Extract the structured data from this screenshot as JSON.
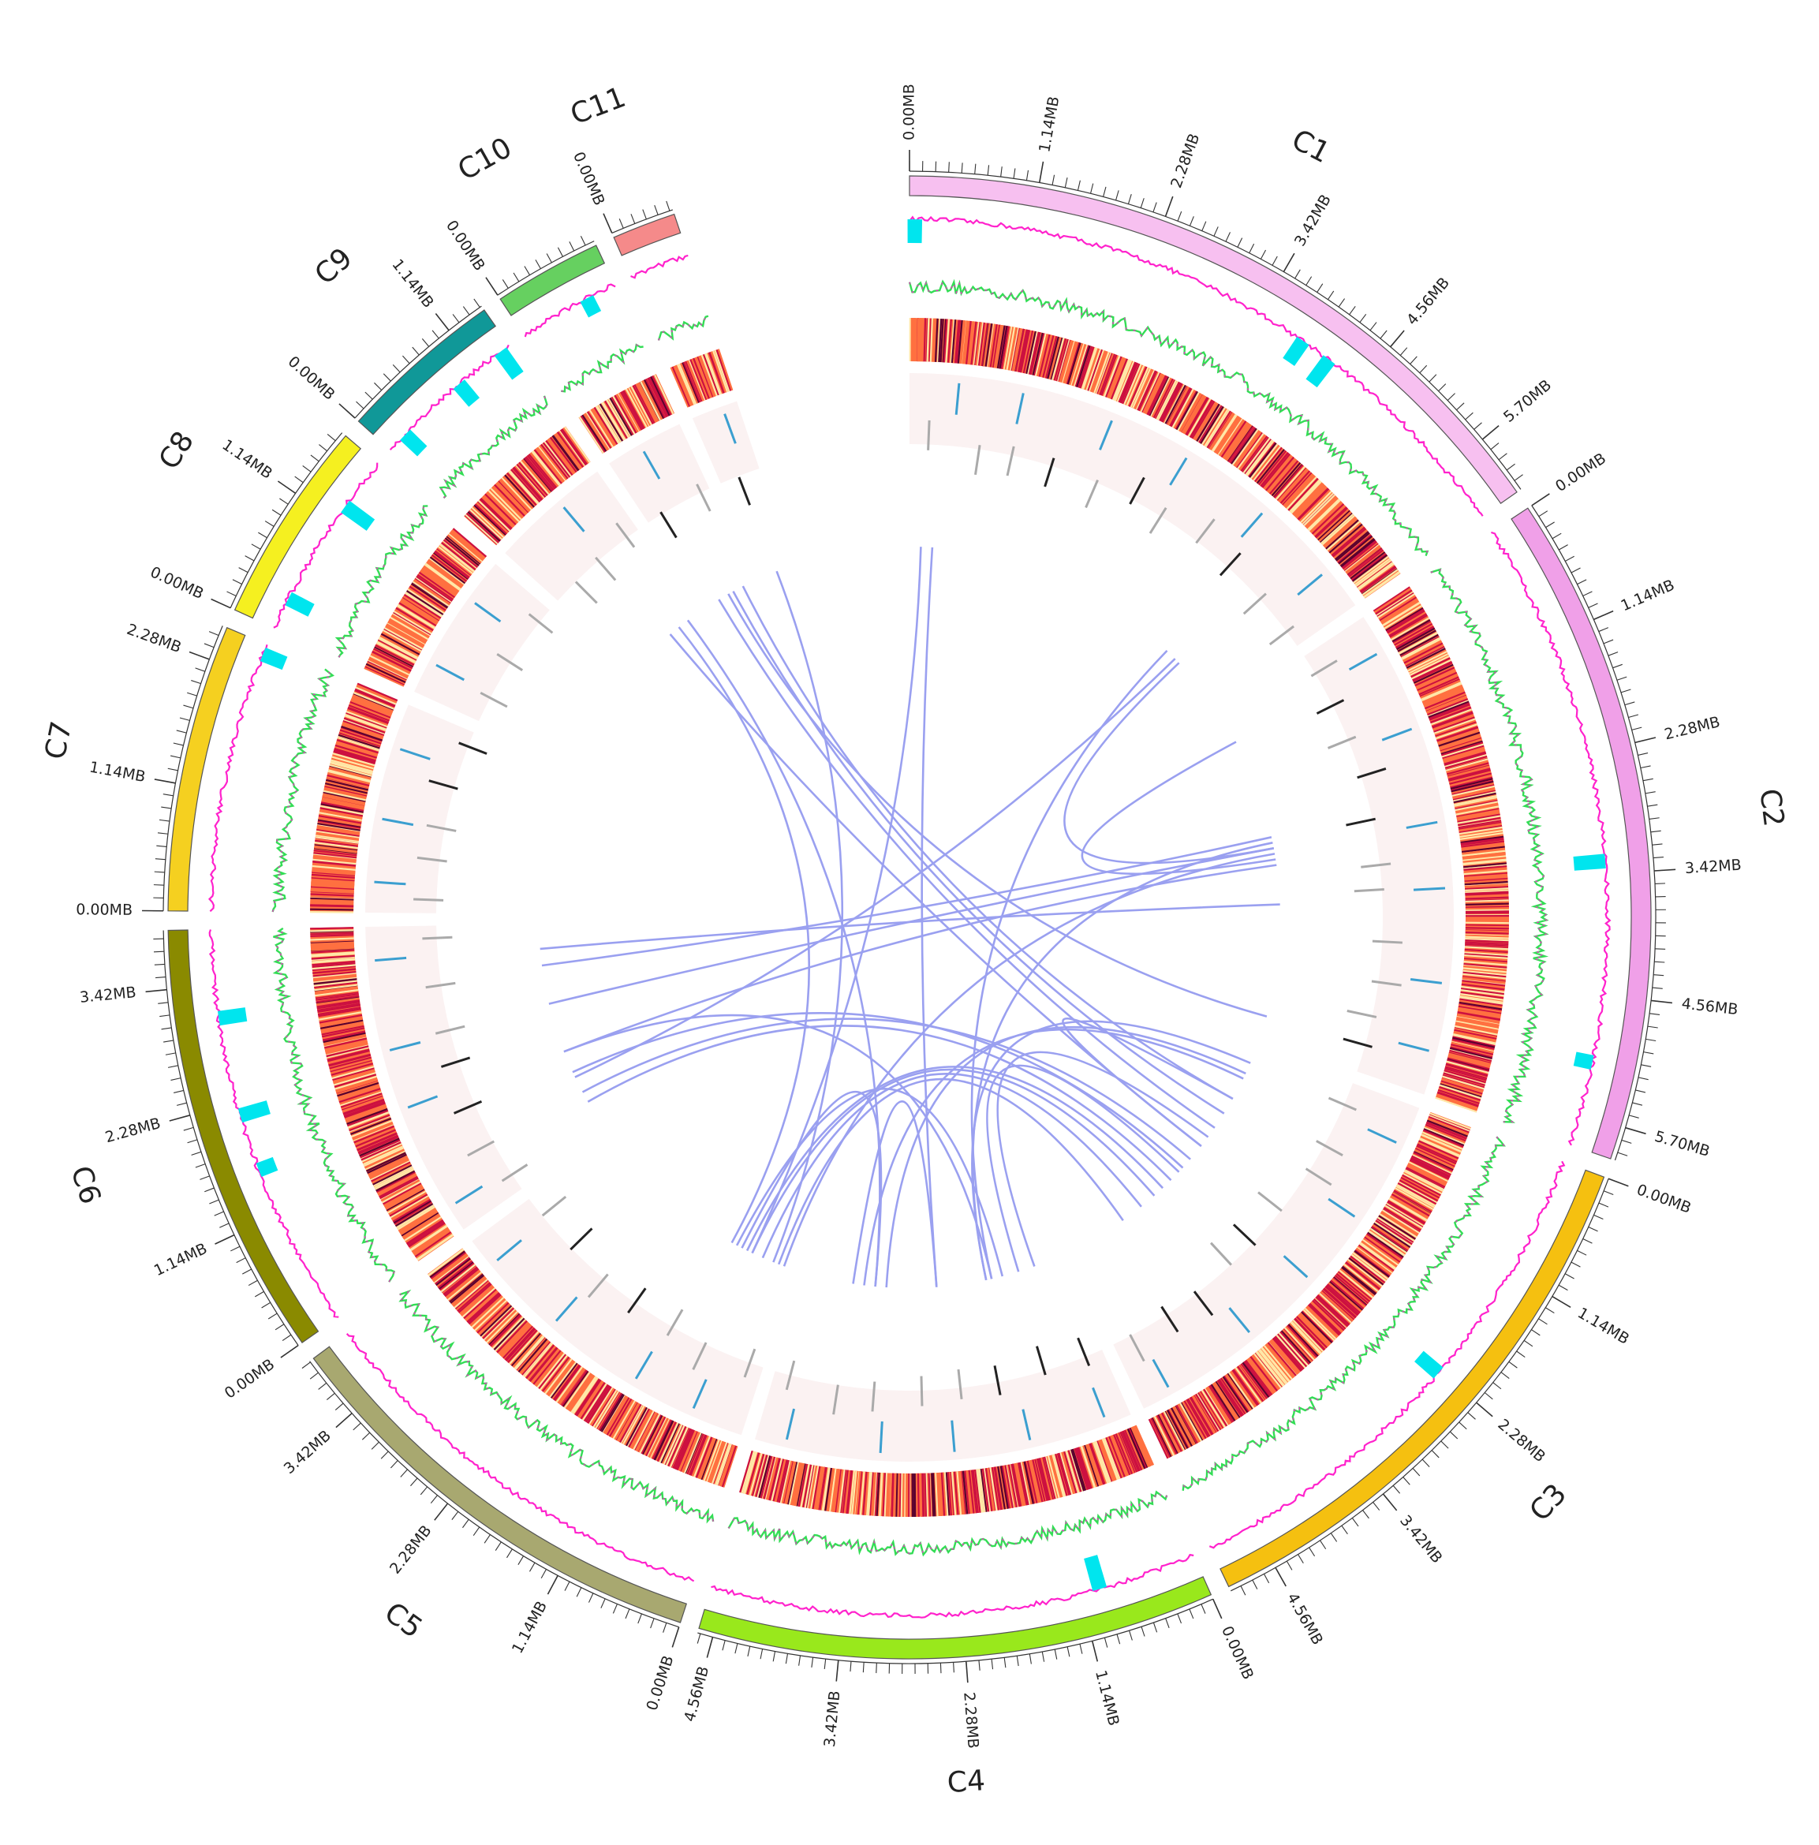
{
  "chart_data": {
    "type": "circos",
    "tick_unit": "MB",
    "colors": {
      "gc_skew_line": "#ff22cc",
      "gc_content_line": "#33dd55",
      "cyan_bars": "#00e5ee",
      "heatmap_low": "#ffe8a8",
      "heatmap_mid": "#ff7040",
      "heatmap_high": "#cc1040",
      "heatmap_max": "#5a0030",
      "marker_blue": "#3b9fd0",
      "marker_gray": "#aaaaaa",
      "marker_dark": "#222222",
      "link_color": "#9aa0f0",
      "ring_background": "#fbf2f2",
      "heatmap_gap": "#fff3c8"
    },
    "chromosomes": [
      {
        "name": "C1",
        "size_mb": 6.25,
        "start_deg": 0.0,
        "end_deg": 55.0,
        "color": "#f7c0f0",
        "ticks": [
          "0.00MB",
          "1.14MB",
          "2.28MB",
          "3.42MB",
          "4.56MB",
          "5.70MB"
        ]
      },
      {
        "name": "C2",
        "size_mb": 6.0,
        "start_deg": 56.5,
        "end_deg": 109.0,
        "color": "#f0a0e8",
        "ticks": [
          "0.00MB",
          "1.14MB",
          "2.28MB",
          "3.42MB",
          "4.56MB",
          "5.70MB"
        ]
      },
      {
        "name": "C3",
        "size_mb": 5.0,
        "start_deg": 110.5,
        "end_deg": 154.5,
        "color": "#f5c010",
        "ticks": [
          "0.00MB",
          "1.14MB",
          "2.28MB",
          "3.42MB",
          "4.56MB"
        ]
      },
      {
        "name": "C4",
        "size_mb": 4.7,
        "start_deg": 156.0,
        "end_deg": 196.5,
        "color": "#99e81c",
        "ticks": [
          "0.00MB",
          "1.14MB",
          "2.28MB",
          "3.42MB",
          "4.56MB"
        ]
      },
      {
        "name": "C5",
        "size_mb": 4.0,
        "start_deg": 198.0,
        "end_deg": 233.5,
        "color": "#a8a870",
        "ticks": [
          "0.00MB",
          "1.14MB",
          "2.28MB",
          "3.42MB"
        ]
      },
      {
        "name": "C6",
        "size_mb": 3.95,
        "start_deg": 235.0,
        "end_deg": 269.0,
        "color": "#8a8a00",
        "ticks": [
          "0.00MB",
          "1.14MB",
          "2.28MB",
          "3.42MB"
        ]
      },
      {
        "name": "C7",
        "size_mb": 2.6,
        "start_deg": 270.5,
        "end_deg": 293.0,
        "color": "#f5d020",
        "ticks": [
          "0.00MB",
          "1.14MB",
          "2.28MB"
        ]
      },
      {
        "name": "C8",
        "size_mb": 1.8,
        "start_deg": 294.5,
        "end_deg": 310.5,
        "color": "#f5f020",
        "ticks": [
          "0.00MB",
          "1.14MB"
        ]
      },
      {
        "name": "C9",
        "size_mb": 1.5,
        "start_deg": 312.0,
        "end_deg": 325.0,
        "color": "#109898",
        "ticks": [
          "0.00MB",
          "1.14MB"
        ]
      },
      {
        "name": "C10",
        "size_mb": 1.0,
        "start_deg": 326.5,
        "end_deg": 335.0,
        "color": "#66d060",
        "ticks": [
          "0.00MB"
        ]
      },
      {
        "name": "C11",
        "size_mb": 0.6,
        "start_deg": 336.5,
        "end_deg": 341.5,
        "color": "#f58a8a",
        "ticks": [
          "0.00MB"
        ]
      }
    ],
    "gc_cyan_peaks": [
      {
        "chrom": "C1",
        "pos_mb": 0.05,
        "value": 0.3
      },
      {
        "chrom": "C1",
        "pos_mb": 3.9,
        "value": 0.35
      },
      {
        "chrom": "C1",
        "pos_mb": 4.2,
        "value": 0.45
      },
      {
        "chrom": "C2",
        "pos_mb": 3.3,
        "value": 0.5
      },
      {
        "chrom": "C2",
        "pos_mb": 5.2,
        "value": 0.15
      },
      {
        "chrom": "C3",
        "pos_mb": 2.3,
        "value": 0.35
      },
      {
        "chrom": "C4",
        "pos_mb": 0.95,
        "value": 0.55
      },
      {
        "chrom": "C6",
        "pos_mb": 3.1,
        "value": 0.4
      },
      {
        "chrom": "C6",
        "pos_mb": 2.15,
        "value": 0.45
      },
      {
        "chrom": "C6",
        "pos_mb": 1.6,
        "value": 0.15
      },
      {
        "chrom": "C7",
        "pos_mb": 2.5,
        "value": 0.3
      },
      {
        "chrom": "C8",
        "pos_mb": 0.3,
        "value": 0.35
      },
      {
        "chrom": "C8",
        "pos_mb": 1.3,
        "value": 0.5
      },
      {
        "chrom": "C9",
        "pos_mb": 0.2,
        "value": 0.3
      },
      {
        "chrom": "C9",
        "pos_mb": 0.9,
        "value": 0.3
      },
      {
        "chrom": "C9",
        "pos_mb": 1.4,
        "value": 0.45
      },
      {
        "chrom": "C10",
        "pos_mb": 0.7,
        "value": 0.15
      }
    ],
    "links": [
      {
        "from": [
          "C1",
          0.4
        ],
        "to": [
          "C4",
          2.3
        ]
      },
      {
        "from": [
          "C1",
          0.2
        ],
        "to": [
          "C5",
          0.8
        ]
      },
      {
        "from": [
          "C11",
          0.3
        ],
        "to": [
          "C5",
          0.4
        ]
      },
      {
        "from": [
          "C10",
          0.5
        ],
        "to": [
          "C2",
          5.6
        ]
      },
      {
        "from": [
          "C10",
          0.3
        ],
        "to": [
          "C3",
          1.6
        ]
      },
      {
        "from": [
          "C10",
          0.6
        ],
        "to": [
          "C3",
          1.3
        ]
      },
      {
        "from": [
          "C10",
          0.8
        ],
        "to": [
          "C3",
          1.0
        ]
      },
      {
        "from": [
          "C9",
          1.3
        ],
        "to": [
          "C4",
          3.4
        ]
      },
      {
        "from": [
          "C9",
          1.1
        ],
        "to": [
          "C5",
          1.2
        ]
      },
      {
        "from": [
          "C9",
          0.9
        ],
        "to": [
          "C3",
          2.0
        ]
      },
      {
        "from": [
          "C1",
          5.2
        ],
        "to": [
          "C6",
          1.1
        ]
      },
      {
        "from": [
          "C1",
          5.3
        ],
        "to": [
          "C2",
          2.6
        ]
      },
      {
        "from": [
          "C1",
          5.0
        ],
        "to": [
          "C4",
          1.3
        ]
      },
      {
        "from": [
          "C2",
          2.4
        ],
        "to": [
          "C6",
          3.2
        ]
      },
      {
        "from": [
          "C2",
          2.6
        ],
        "to": [
          "C6",
          2.5
        ]
      },
      {
        "from": [
          "C2",
          2.9
        ],
        "to": [
          "C6",
          1.6
        ]
      },
      {
        "from": [
          "C2",
          3.6
        ],
        "to": [
          "C6",
          3.5
        ]
      },
      {
        "from": [
          "C2",
          2.7
        ],
        "to": [
          "C5",
          0.2
        ]
      },
      {
        "from": [
          "C2",
          2.5
        ],
        "to": [
          "C4",
          1.4
        ]
      },
      {
        "from": [
          "C6",
          1.6
        ],
        "to": [
          "C4",
          1.3
        ]
      },
      {
        "from": [
          "C6",
          1.2
        ],
        "to": [
          "C3",
          2.5
        ]
      },
      {
        "from": [
          "C6",
          0.8
        ],
        "to": [
          "C3",
          2.3
        ]
      },
      {
        "from": [
          "C6",
          0.6
        ],
        "to": [
          "C3",
          2.8
        ]
      },
      {
        "from": [
          "C5",
          0.6
        ],
        "to": [
          "C3",
          3.5
        ]
      },
      {
        "from": [
          "C5",
          0.8
        ],
        "to": [
          "C3",
          3.2
        ]
      },
      {
        "from": [
          "C5",
          0.3
        ],
        "to": [
          "C3",
          3.9
        ]
      },
      {
        "from": [
          "C5",
          0.9
        ],
        "to": [
          "C3",
          3.0
        ]
      },
      {
        "from": [
          "C5",
          1.0
        ],
        "to": [
          "C4",
          3.4
        ]
      },
      {
        "from": [
          "C4",
          0.5
        ],
        "to": [
          "C3",
          1.8
        ]
      },
      {
        "from": [
          "C4",
          0.8
        ],
        "to": [
          "C3",
          2.6
        ]
      },
      {
        "from": [
          "C4",
          3.2
        ],
        "to": [
          "C3",
          0.5
        ]
      },
      {
        "from": [
          "C4",
          3.6
        ],
        "to": [
          "C3",
          0.6
        ]
      },
      {
        "from": [
          "C4",
          1.4
        ],
        "to": [
          "C3",
          0.3
        ]
      },
      {
        "from": [
          "C4",
          3.8
        ],
        "to": [
          "C4",
          2.3
        ]
      },
      {
        "from": [
          "C5",
          1.1
        ],
        "to": [
          "C4",
          1.1
        ]
      },
      {
        "from": [
          "C3",
          2.0
        ],
        "to": [
          "C3",
          1.0
        ]
      },
      {
        "from": [
          "C2",
          2.8
        ],
        "to": [
          "C2",
          0.6
        ]
      }
    ]
  }
}
